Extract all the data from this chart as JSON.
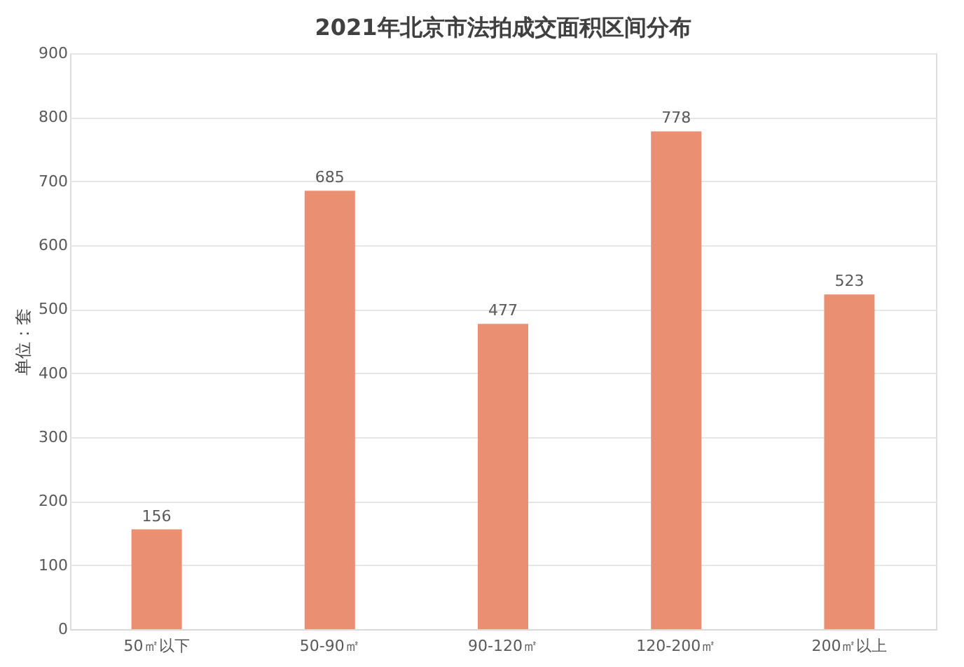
{
  "chart_data": {
    "type": "bar",
    "title": "2021年北京市法拍成交面积区间分布",
    "ylabel": "单位：套",
    "categories": [
      "50㎡以下",
      "50-90㎡",
      "90-120㎡",
      "120-200㎡",
      "200㎡以上"
    ],
    "values": [
      156,
      685,
      477,
      778,
      523
    ],
    "color": "#eb8f72",
    "ylim": [
      0,
      900
    ],
    "yticks": [
      0,
      100,
      200,
      300,
      400,
      500,
      600,
      700,
      800,
      900
    ],
    "grid": "y",
    "data_labels": true
  }
}
